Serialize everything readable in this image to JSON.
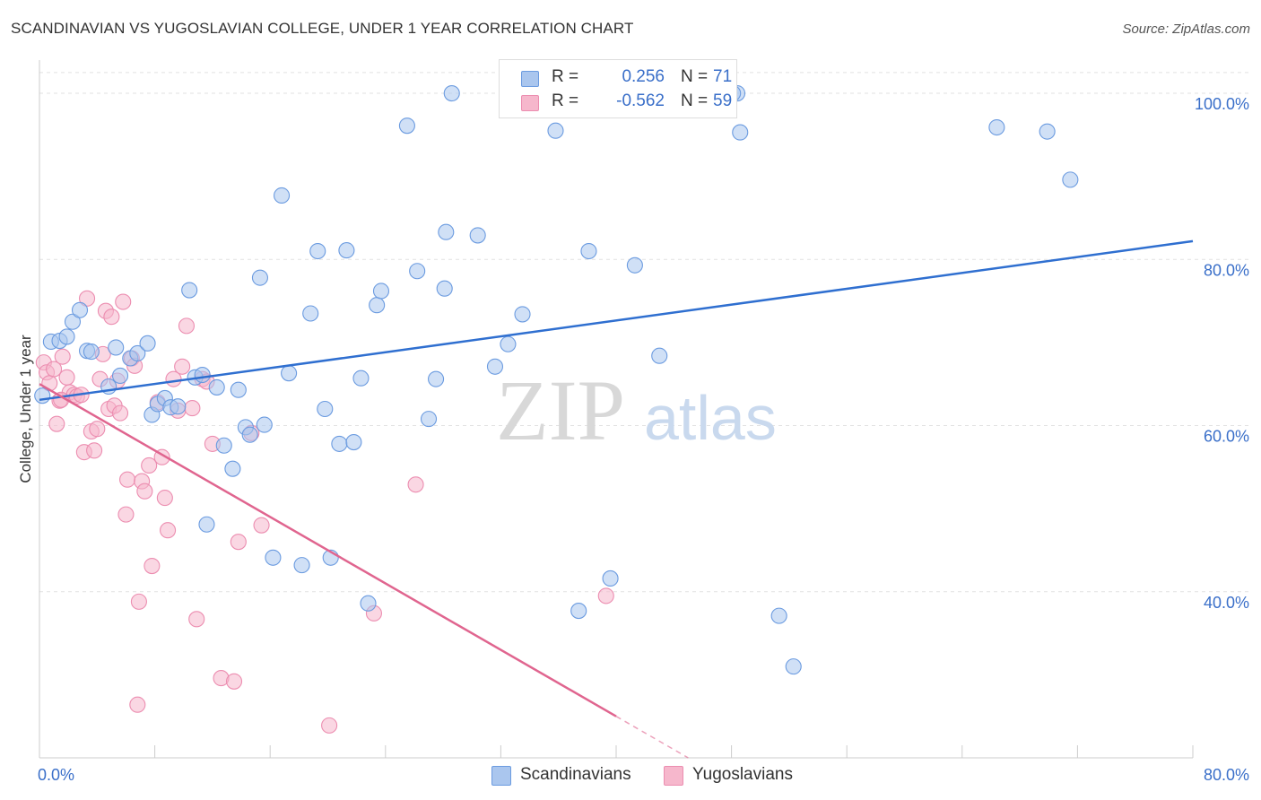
{
  "title": "SCANDINAVIAN VS YUGOSLAVIAN COLLEGE, UNDER 1 YEAR CORRELATION CHART",
  "source": "Source: ZipAtlas.com",
  "legend": {
    "rows": [
      {
        "r_label": "R =",
        "r_value": "0.256",
        "n_label": "N =",
        "n_value": "71"
      },
      {
        "r_label": "R =",
        "r_value": "-0.562",
        "n_label": "N =",
        "n_value": "59"
      }
    ]
  },
  "bottom_legend": [
    "Scandinavians",
    "Yugoslavians"
  ],
  "watermark": {
    "zip": "ZIP",
    "atlas": "atlas"
  },
  "colors": {
    "scandinavian_fill": "#aac6ee",
    "scandinavian_stroke": "#6b9be0",
    "scandinavian_line": "#2f6fd0",
    "yugoslavian_fill": "#f6b7cc",
    "yugoslavian_stroke": "#ec8db0",
    "yugoslavian_line": "#e0658f",
    "grid": "#e2e2e2",
    "tick_text": "#3a6fc9"
  },
  "chart_data": {
    "type": "scatter",
    "title": "SCANDINAVIAN VS YUGOSLAVIAN COLLEGE, UNDER 1 YEAR CORRELATION CHART",
    "xlabel": "",
    "ylabel": "College, Under 1 year",
    "xlim": [
      0,
      80
    ],
    "ylim": [
      20,
      104
    ],
    "x_tick_labels": [
      "0.0%",
      "80.0%"
    ],
    "y_ticks": [
      40,
      60,
      80,
      100
    ],
    "y_tick_labels": [
      "40.0%",
      "60.0%",
      "80.0%",
      "100.0%"
    ],
    "grid": true,
    "legend_position": "top-center",
    "series": [
      {
        "name": "Scandinavians",
        "r": 0.256,
        "n": 71,
        "trend": {
          "x": [
            0,
            80
          ],
          "y": [
            63.1,
            82.2
          ]
        },
        "points": [
          [
            0.2,
            63.6
          ],
          [
            0.8,
            70.1
          ],
          [
            1.4,
            70.2
          ],
          [
            1.9,
            70.7
          ],
          [
            2.3,
            72.5
          ],
          [
            2.8,
            73.9
          ],
          [
            3.3,
            69.0
          ],
          [
            3.6,
            68.9
          ],
          [
            4.8,
            64.7
          ],
          [
            5.3,
            69.4
          ],
          [
            5.6,
            66.0
          ],
          [
            6.3,
            68.1
          ],
          [
            6.8,
            68.7
          ],
          [
            7.5,
            69.9
          ],
          [
            7.8,
            61.3
          ],
          [
            8.2,
            62.6
          ],
          [
            8.7,
            63.3
          ],
          [
            9.1,
            62.2
          ],
          [
            9.6,
            62.3
          ],
          [
            10.4,
            76.3
          ],
          [
            10.8,
            65.8
          ],
          [
            11.3,
            66.1
          ],
          [
            11.6,
            48.1
          ],
          [
            12.3,
            64.6
          ],
          [
            12.8,
            57.6
          ],
          [
            13.4,
            54.8
          ],
          [
            13.8,
            64.3
          ],
          [
            14.3,
            59.8
          ],
          [
            14.6,
            58.9
          ],
          [
            15.3,
            77.8
          ],
          [
            15.6,
            60.1
          ],
          [
            16.2,
            44.1
          ],
          [
            16.8,
            87.7
          ],
          [
            17.3,
            66.3
          ],
          [
            18.2,
            43.2
          ],
          [
            18.8,
            73.5
          ],
          [
            19.3,
            81.0
          ],
          [
            19.8,
            62.0
          ],
          [
            20.2,
            44.1
          ],
          [
            20.8,
            57.8
          ],
          [
            21.3,
            81.1
          ],
          [
            21.8,
            58.0
          ],
          [
            22.3,
            65.7
          ],
          [
            22.8,
            38.6
          ],
          [
            23.4,
            74.5
          ],
          [
            23.7,
            76.2
          ],
          [
            25.5,
            96.1
          ],
          [
            26.2,
            78.6
          ],
          [
            27.0,
            60.8
          ],
          [
            27.5,
            65.6
          ],
          [
            28.1,
            76.5
          ],
          [
            28.2,
            83.3
          ],
          [
            28.6,
            100.0
          ],
          [
            30.4,
            82.9
          ],
          [
            31.6,
            67.1
          ],
          [
            32.5,
            69.8
          ],
          [
            33.5,
            73.4
          ],
          [
            35.8,
            95.5
          ],
          [
            37.4,
            37.7
          ],
          [
            38.1,
            81.0
          ],
          [
            39.6,
            41.6
          ],
          [
            41.3,
            79.3
          ],
          [
            43.0,
            68.4
          ],
          [
            48.4,
            100.0
          ],
          [
            48.6,
            95.3
          ],
          [
            51.3,
            37.1
          ],
          [
            52.3,
            31.0
          ],
          [
            66.4,
            95.9
          ],
          [
            69.9,
            95.4
          ],
          [
            71.5,
            89.6
          ],
          [
            48.1,
            100.0
          ]
        ]
      },
      {
        "name": "Yugoslavians",
        "r": -0.562,
        "n": 59,
        "trend": {
          "x": [
            0,
            40
          ],
          "y": [
            65.0,
            25.0
          ]
        },
        "trend_dashed": {
          "x": [
            40,
            45
          ],
          "y": [
            25.0,
            20.0
          ]
        },
        "points": [
          [
            0.3,
            67.6
          ],
          [
            0.5,
            66.4
          ],
          [
            0.7,
            65.1
          ],
          [
            1.0,
            66.8
          ],
          [
            1.2,
            60.2
          ],
          [
            1.4,
            63.0
          ],
          [
            1.6,
            68.3
          ],
          [
            1.9,
            65.8
          ],
          [
            2.1,
            64.0
          ],
          [
            2.4,
            63.7
          ],
          [
            2.6,
            63.5
          ],
          [
            2.9,
            63.7
          ],
          [
            3.1,
            56.8
          ],
          [
            3.3,
            75.3
          ],
          [
            3.6,
            59.3
          ],
          [
            3.8,
            57.0
          ],
          [
            4.0,
            59.6
          ],
          [
            4.2,
            65.6
          ],
          [
            4.4,
            68.6
          ],
          [
            4.6,
            73.8
          ],
          [
            4.8,
            62.0
          ],
          [
            5.0,
            73.1
          ],
          [
            5.2,
            62.4
          ],
          [
            5.4,
            65.4
          ],
          [
            5.6,
            61.5
          ],
          [
            5.8,
            74.9
          ],
          [
            6.0,
            49.3
          ],
          [
            6.1,
            53.5
          ],
          [
            6.4,
            68.1
          ],
          [
            6.6,
            67.2
          ],
          [
            6.8,
            26.4
          ],
          [
            6.9,
            38.8
          ],
          [
            7.1,
            53.3
          ],
          [
            7.3,
            52.1
          ],
          [
            7.6,
            55.2
          ],
          [
            7.8,
            43.1
          ],
          [
            8.2,
            62.8
          ],
          [
            8.5,
            56.2
          ],
          [
            8.7,
            51.3
          ],
          [
            8.9,
            47.4
          ],
          [
            9.3,
            65.6
          ],
          [
            9.6,
            61.8
          ],
          [
            9.9,
            67.1
          ],
          [
            10.2,
            72.0
          ],
          [
            10.6,
            62.1
          ],
          [
            10.9,
            36.7
          ],
          [
            11.3,
            65.6
          ],
          [
            11.6,
            65.3
          ],
          [
            12.0,
            57.8
          ],
          [
            12.6,
            29.6
          ],
          [
            13.5,
            29.2
          ],
          [
            13.8,
            46.0
          ],
          [
            14.7,
            59.1
          ],
          [
            15.4,
            48.0
          ],
          [
            20.1,
            23.9
          ],
          [
            23.2,
            37.4
          ],
          [
            26.1,
            52.9
          ],
          [
            39.3,
            39.5
          ],
          [
            1.5,
            63.1
          ]
        ]
      }
    ]
  }
}
